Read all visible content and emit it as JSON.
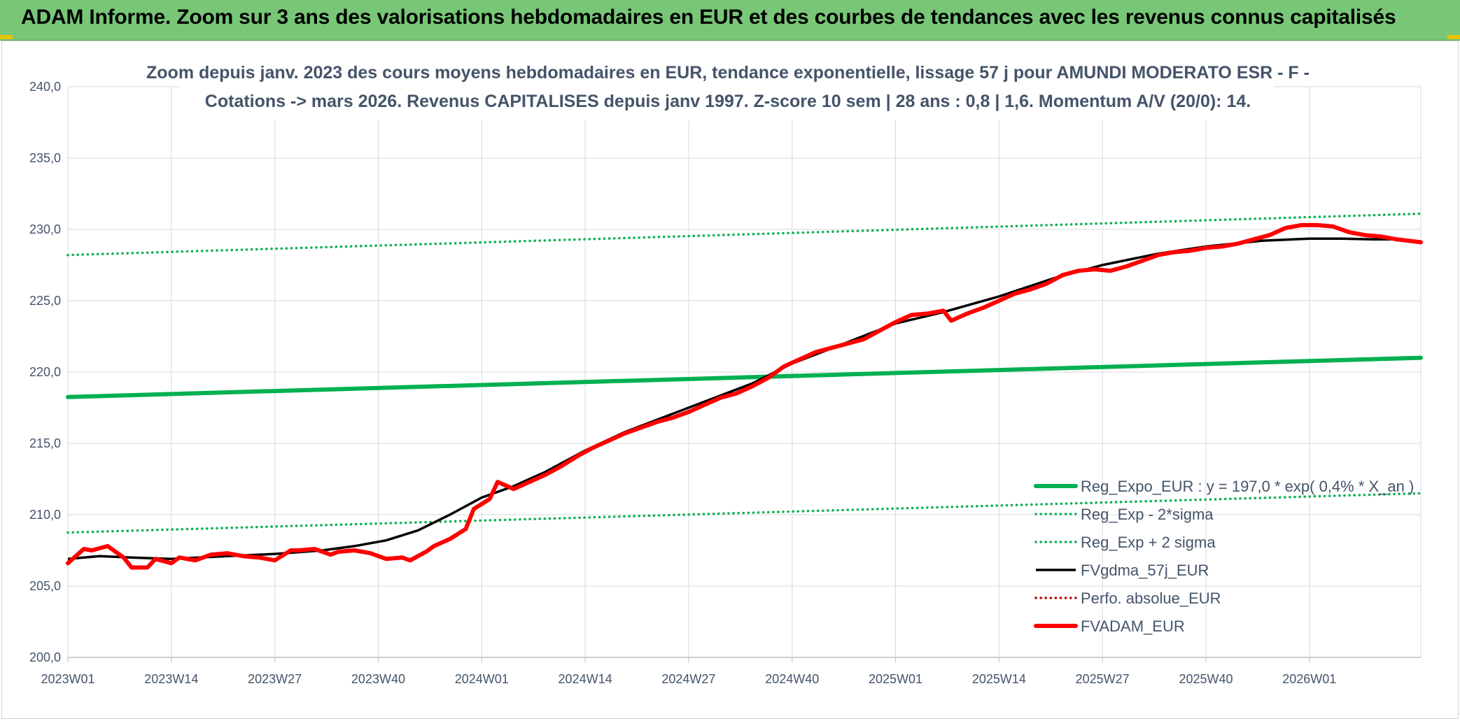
{
  "banner": {
    "title": "ADAM Informe. Zoom sur 3 ans des valorisations hebdomadaires en EUR et des courbes de tendances avec les revenus connus capitalisés"
  },
  "colors": {
    "banner_bg": "#77c777",
    "trend": "#00b050",
    "smooth": "#000000",
    "price": "#ff0000",
    "text": "#44546a",
    "grid": "#d9d9d9"
  },
  "chart_data": {
    "type": "line",
    "title_lines": [
      "Zoom depuis janv. 2023 des cours moyens hebdomadaires en EUR, tendance exponentielle, lissage 57 j pour AMUNDI MODERATO ESR - F -",
      "Cotations -> mars 2026. Revenus CAPITALISES depuis janv 1997. Z-score 10 sem | 28 ans : 0,8 | 1,6. Momentum A/V (20/0): 14."
    ],
    "x_ticks": [
      "2023W01",
      "2023W14",
      "2023W27",
      "2023W40",
      "2024W01",
      "2024W14",
      "2024W27",
      "2024W40",
      "2025W01",
      "2025W14",
      "2025W27",
      "2025W40",
      "2026W01"
    ],
    "x_range": [
      0,
      170
    ],
    "y_ticks": [
      "200,0",
      "205,0",
      "210,0",
      "215,0",
      "220,0",
      "225,0",
      "230,0",
      "235,0",
      "240,0"
    ],
    "ylim": [
      200,
      240
    ],
    "legend_position": "bottom-right",
    "series": [
      {
        "name": "Reg_Expo_EUR : y = 197,0 * exp( 0,4% * X_an )",
        "style": "solid-thick",
        "color": "#00b050",
        "x": [
          0,
          170
        ],
        "values": [
          218.25,
          221.0
        ]
      },
      {
        "name": "Reg_Exp - 2*sigma",
        "style": "dotted",
        "color": "#00b050",
        "x": [
          0,
          170
        ],
        "values": [
          208.75,
          211.5
        ]
      },
      {
        "name": "Reg_Exp + 2 sigma",
        "style": "dotted",
        "color": "#00b050",
        "x": [
          0,
          170
        ],
        "values": [
          228.2,
          231.1
        ]
      },
      {
        "name": "FVgdma_57j_EUR",
        "style": "solid",
        "color": "#000000",
        "x": [
          0,
          4,
          8,
          13,
          20,
          26,
          32,
          36,
          40,
          44,
          48,
          52,
          56,
          60,
          65,
          70,
          78,
          86,
          91,
          98,
          104,
          110,
          117,
          124,
          130,
          137,
          143,
          150,
          156,
          160,
          164,
          167,
          170
        ],
        "values": [
          206.9,
          207.1,
          207.0,
          206.9,
          207.1,
          207.25,
          207.5,
          207.8,
          208.2,
          208.9,
          210.0,
          211.2,
          212.0,
          213.0,
          214.5,
          215.8,
          217.5,
          219.2,
          220.6,
          222.1,
          223.4,
          224.2,
          225.3,
          226.6,
          227.5,
          228.3,
          228.8,
          229.2,
          229.35,
          229.35,
          229.3,
          229.3,
          229.15
        ]
      },
      {
        "name": "Perfo. absolue_EUR",
        "style": "dotted",
        "color": "#c00000",
        "x": [],
        "values": []
      },
      {
        "name": "FVADAM_EUR",
        "style": "solid-thick",
        "color": "#ff0000",
        "x": [
          0,
          2,
          3,
          5,
          7,
          8,
          10,
          11,
          13,
          14,
          16,
          18,
          20,
          22,
          24,
          26,
          28,
          29,
          31,
          33,
          34,
          36,
          37,
          38,
          40,
          42,
          43,
          45,
          46,
          48,
          50,
          51,
          53,
          54,
          56,
          58,
          60,
          62,
          64,
          66,
          68,
          70,
          72,
          74,
          76,
          78,
          80,
          82,
          84,
          86,
          88,
          90,
          92,
          94,
          96,
          98,
          100,
          102,
          104,
          106,
          108,
          110,
          111,
          113,
          115,
          117,
          119,
          121,
          123,
          125,
          127,
          129,
          131,
          133,
          135,
          137,
          139,
          141,
          143,
          145,
          147,
          149,
          151,
          153,
          155,
          157,
          159,
          161,
          163,
          165,
          167,
          170
        ],
        "values": [
          206.6,
          207.6,
          207.5,
          207.8,
          207.0,
          206.3,
          206.3,
          206.9,
          206.6,
          207.0,
          206.8,
          207.2,
          207.3,
          207.1,
          207.0,
          206.8,
          207.5,
          207.5,
          207.6,
          207.2,
          207.4,
          207.5,
          207.4,
          207.3,
          206.9,
          207.0,
          206.8,
          207.4,
          207.8,
          208.3,
          209.0,
          210.4,
          211.1,
          212.3,
          211.8,
          212.3,
          212.8,
          213.4,
          214.1,
          214.7,
          215.2,
          215.7,
          216.1,
          216.5,
          216.8,
          217.2,
          217.7,
          218.2,
          218.5,
          219.0,
          219.6,
          220.4,
          220.9,
          221.4,
          221.7,
          222.0,
          222.3,
          222.9,
          223.5,
          224.0,
          224.1,
          224.3,
          223.6,
          224.1,
          224.5,
          225.0,
          225.5,
          225.8,
          226.2,
          226.8,
          227.1,
          227.2,
          227.1,
          227.4,
          227.8,
          228.2,
          228.4,
          228.5,
          228.7,
          228.8,
          229.0,
          229.3,
          229.6,
          230.1,
          230.3,
          230.3,
          230.2,
          229.8,
          229.6,
          229.5,
          229.3,
          229.1
        ]
      }
    ]
  }
}
